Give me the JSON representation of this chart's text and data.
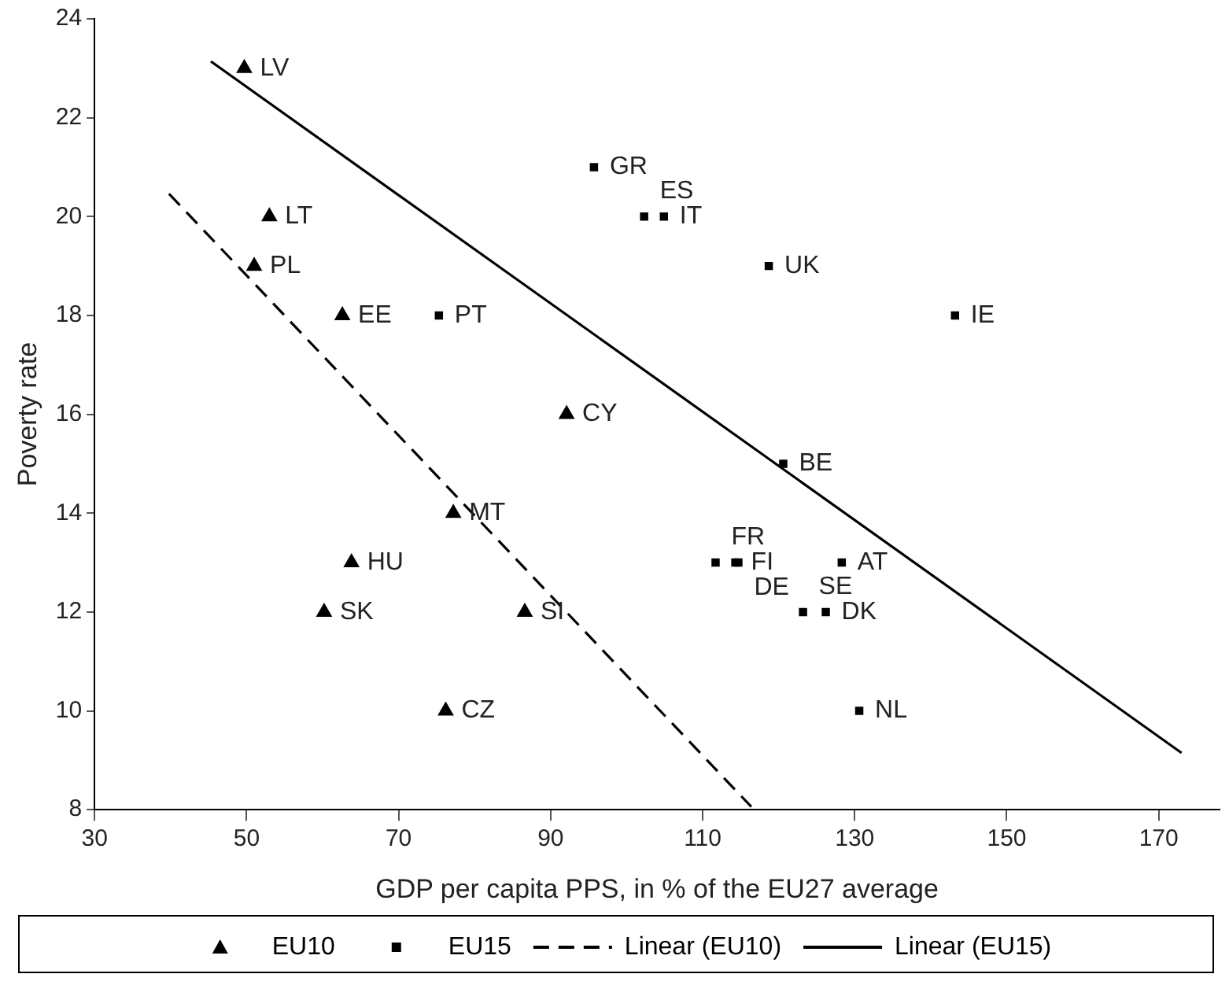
{
  "chart_data": {
    "type": "scatter",
    "xlabel": "GDP per capita PPS, in % of the EU27 average",
    "ylabel": "Poverty rate",
    "xlim": [
      30,
      178
    ],
    "xticks": [
      30,
      50,
      70,
      90,
      110,
      130,
      150,
      170
    ],
    "ylim": [
      8,
      24
    ],
    "yticks": [
      8,
      10,
      12,
      14,
      16,
      18,
      20,
      22,
      24
    ],
    "grid": false,
    "legend": "bottom",
    "series": [
      {
        "name": "EU10",
        "marker": "triangle",
        "color": "#000000",
        "x": [
          49.7,
          53,
          51,
          62.6,
          92.1,
          77.2,
          63.8,
          60.2,
          86.6,
          76.2
        ],
        "values": [
          23,
          20,
          19,
          18,
          16,
          14,
          13,
          12,
          12,
          10
        ],
        "value_labels": [
          "LV",
          "LT",
          "PL",
          "EE",
          "CY",
          "MT",
          "HU",
          "SK",
          "SI",
          "CZ"
        ]
      },
      {
        "name": "EU15",
        "marker": "square",
        "color": "#000000",
        "x": [
          95.7,
          75.3,
          102.3,
          104.9,
          118.7,
          143.2,
          120.6,
          111.7,
          114.3,
          114.7,
          128.3,
          123.2,
          126.2,
          130.6
        ],
        "values": [
          21,
          18,
          20,
          20,
          19,
          18,
          15,
          13,
          13,
          13,
          13,
          12,
          12,
          10
        ],
        "value_labels": [
          "GR",
          "PT",
          "ES",
          "IT",
          "UK",
          "IE",
          "BE",
          "FR",
          "FI",
          "DE",
          "AT",
          "SE",
          "DK",
          "NL"
        ]
      },
      {
        "name": "Linear (EU10)",
        "type": "line",
        "marker": "none",
        "line_style": "dashed",
        "color": "#000000",
        "x": [
          39.8,
          116.4
        ],
        "values": [
          20.46,
          8.06
        ]
      },
      {
        "name": "Linear (EU15)",
        "type": "line",
        "marker": "none",
        "line_style": "solid",
        "color": "#000000",
        "x": [
          45.3,
          173
        ],
        "values": [
          23.14,
          9.15
        ]
      }
    ]
  }
}
